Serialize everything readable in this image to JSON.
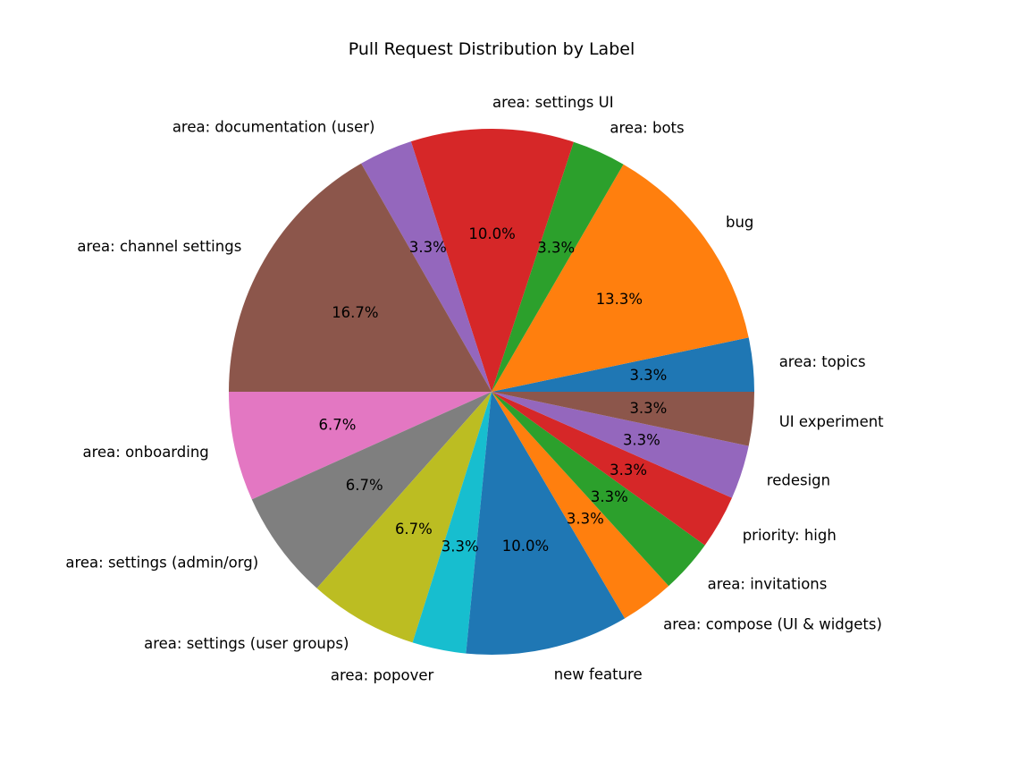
{
  "chart_data": {
    "type": "pie",
    "title": "Pull Request Distribution by Label",
    "start_angle": 0,
    "direction": "counterclockwise",
    "slices": [
      {
        "label": "area: topics",
        "value": 3.3,
        "pct_label": "3.3%",
        "color": "#1f77b4"
      },
      {
        "label": "bug",
        "value": 13.3,
        "pct_label": "13.3%",
        "color": "#ff7f0e"
      },
      {
        "label": "area: bots",
        "value": 3.3,
        "pct_label": "3.3%",
        "color": "#2ca02c"
      },
      {
        "label": "area: settings UI",
        "value": 10.0,
        "pct_label": "10.0%",
        "color": "#d62728"
      },
      {
        "label": "area: documentation (user)",
        "value": 3.3,
        "pct_label": "3.3%",
        "color": "#9467bd"
      },
      {
        "label": "area: channel settings",
        "value": 16.7,
        "pct_label": "16.7%",
        "color": "#8c564b"
      },
      {
        "label": "area: onboarding",
        "value": 6.7,
        "pct_label": "6.7%",
        "color": "#e377c2"
      },
      {
        "label": "area: settings (admin/org)",
        "value": 6.7,
        "pct_label": "6.7%",
        "color": "#7f7f7f"
      },
      {
        "label": "area: settings (user groups)",
        "value": 6.7,
        "pct_label": "6.7%",
        "color": "#bcbd22"
      },
      {
        "label": "area: popover",
        "value": 3.3,
        "pct_label": "3.3%",
        "color": "#17becf"
      },
      {
        "label": "new feature",
        "value": 10.0,
        "pct_label": "10.0%",
        "color": "#1f77b4"
      },
      {
        "label": "area: compose (UI & widgets)",
        "value": 3.3,
        "pct_label": "3.3%",
        "color": "#ff7f0e"
      },
      {
        "label": "area: invitations",
        "value": 3.3,
        "pct_label": "3.3%",
        "color": "#2ca02c"
      },
      {
        "label": "priority: high",
        "value": 3.3,
        "pct_label": "3.3%",
        "color": "#d62728"
      },
      {
        "label": "redesign",
        "value": 3.3,
        "pct_label": "3.3%",
        "color": "#9467bd"
      },
      {
        "label": "UI experiment",
        "value": 3.3,
        "pct_label": "3.3%",
        "color": "#8c564b"
      }
    ]
  }
}
